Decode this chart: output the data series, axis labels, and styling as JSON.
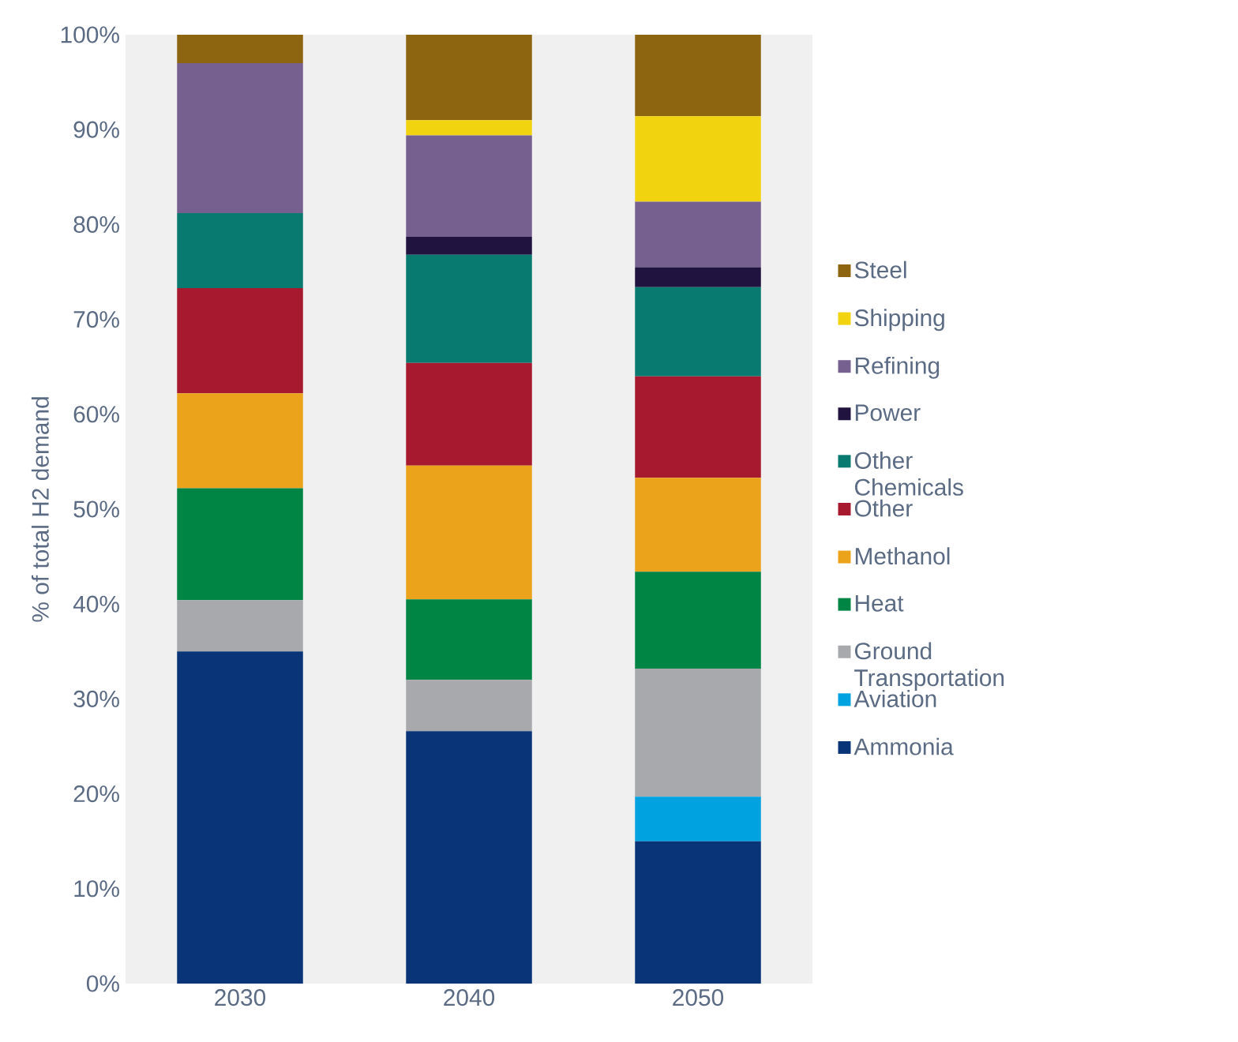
{
  "chart_data": {
    "type": "bar",
    "stacked": true,
    "ylabel": "% of total H2 demand",
    "categories": [
      "2030",
      "2040",
      "2050"
    ],
    "ylim": [
      0,
      100
    ],
    "yticks": [
      {
        "value": 0,
        "label": "0%"
      },
      {
        "value": 10,
        "label": "10%"
      },
      {
        "value": 20,
        "label": "20%"
      },
      {
        "value": 30,
        "label": "30%"
      },
      {
        "value": 40,
        "label": "40%"
      },
      {
        "value": 50,
        "label": "50%"
      },
      {
        "value": 60,
        "label": "60%"
      },
      {
        "value": 70,
        "label": "70%"
      },
      {
        "value": 80,
        "label": "80%"
      },
      {
        "value": 90,
        "label": "90%"
      },
      {
        "value": 100,
        "label": "100%"
      }
    ],
    "legend": "right",
    "series": [
      {
        "name": "Ammonia",
        "color": "#0a3478",
        "values": [
          35,
          26.6,
          15
        ]
      },
      {
        "name": "Aviation",
        "color": "#00a3e0",
        "values": [
          0,
          0,
          4.7
        ]
      },
      {
        "name": "Ground Transportation",
        "color": "#a7a9ac",
        "values": [
          5.4,
          5.4,
          13.5
        ]
      },
      {
        "name": "Heat",
        "color": "#008545",
        "values": [
          11.8,
          8.5,
          10.2
        ]
      },
      {
        "name": "Methanol",
        "color": "#eaa31b",
        "values": [
          10,
          14.1,
          9.9
        ]
      },
      {
        "name": "Other",
        "color": "#a6192e",
        "values": [
          11.1,
          10.8,
          10.7
        ]
      },
      {
        "name": "Other Chemicals",
        "color": "#087a6f",
        "values": [
          7.9,
          11.4,
          9.4
        ]
      },
      {
        "name": "Power",
        "color": "#20133f",
        "values": [
          0,
          1.9,
          2.1
        ]
      },
      {
        "name": "Refining",
        "color": "#76608f",
        "values": [
          15.8,
          10.7,
          6.9
        ]
      },
      {
        "name": "Shipping",
        "color": "#f2d30f",
        "values": [
          0,
          1.6,
          9
        ]
      },
      {
        "name": "Steel",
        "color": "#8d6510",
        "values": [
          3,
          9,
          8.6
        ]
      }
    ]
  }
}
